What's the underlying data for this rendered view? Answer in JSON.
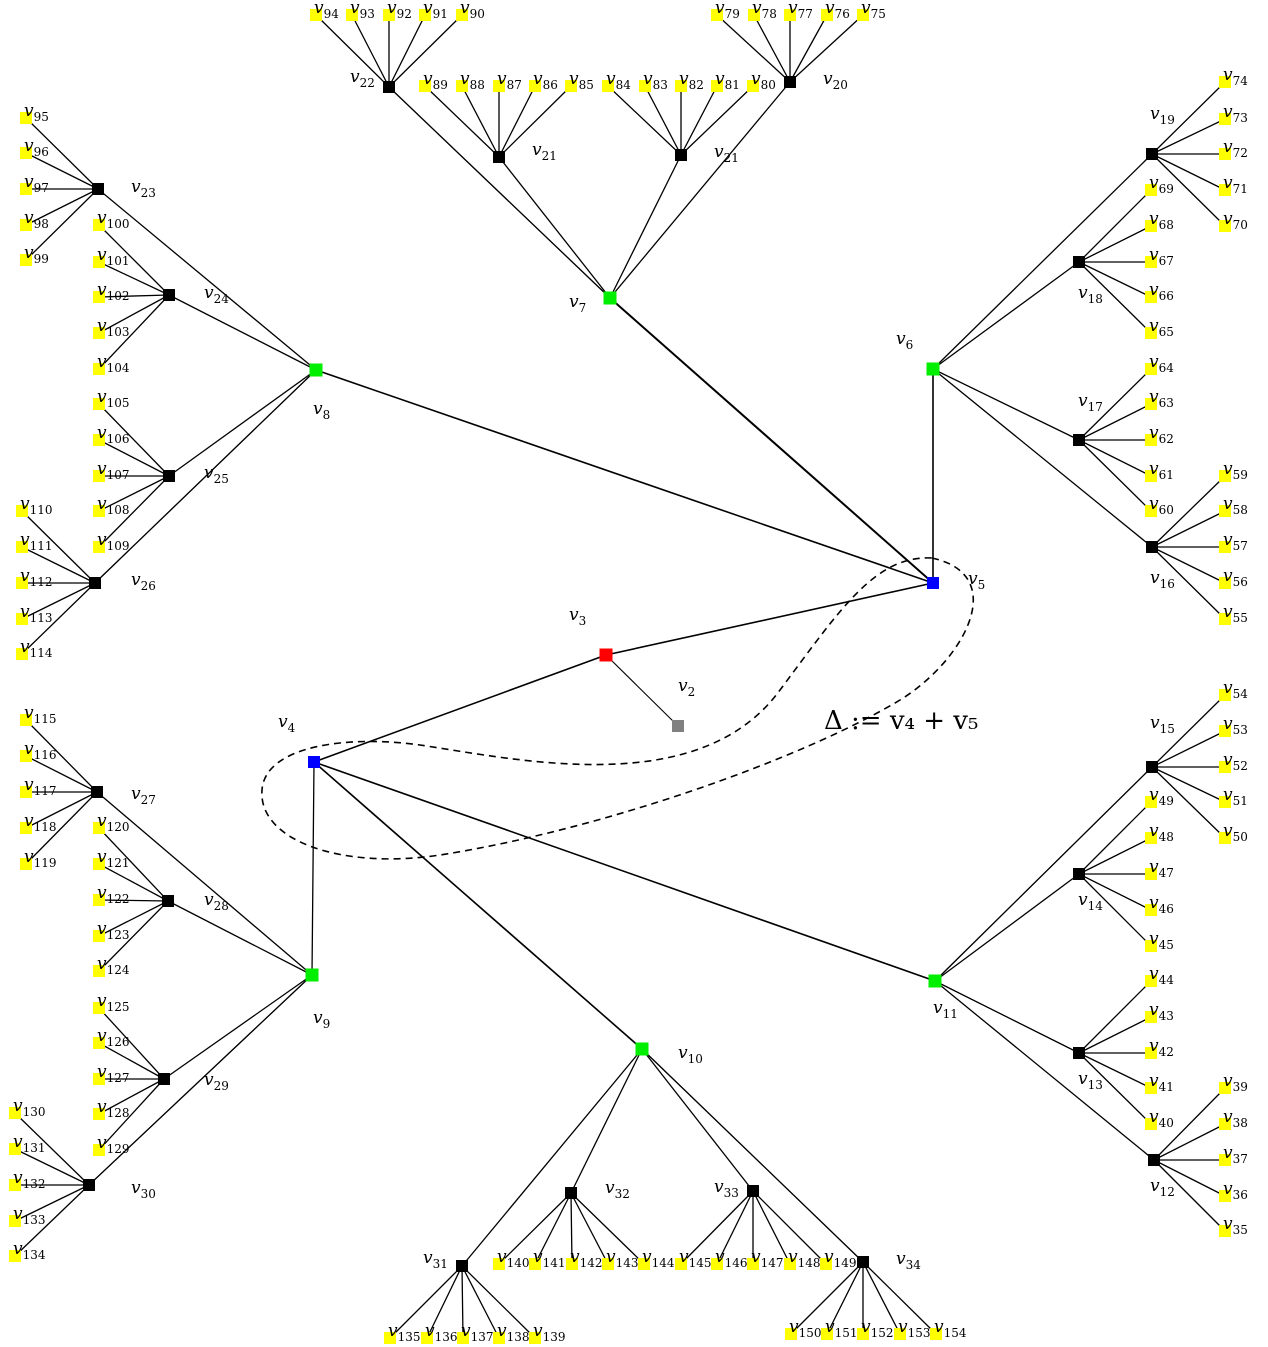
{
  "colors": {
    "root": "#ff0000",
    "center": "#0000ff",
    "hub": "#00ee00",
    "group": "#000000",
    "leaf": "#ffff00",
    "pendant": "#808080"
  },
  "annotation": {
    "text": "Δ := v₄ + v₅"
  },
  "labels": {
    "2": "v2",
    "3": "v3",
    "4": "v4",
    "5": "v5",
    "6": "v6",
    "7": "v7",
    "8": "v8",
    "9": "v9",
    "10": "v10",
    "11": "v11",
    "12": "v12",
    "13": "v13",
    "14": "v14",
    "15": "v15",
    "16": "v16",
    "17": "v17",
    "18": "v18",
    "19": "v19",
    "20": "v20",
    "21a": "v21",
    "21b": "v21",
    "22": "v22",
    "23": "v23",
    "24": "v24",
    "25": "v25",
    "26": "v26",
    "27": "v27",
    "28": "v28",
    "29": "v29",
    "30": "v30",
    "31": "v31",
    "32": "v32",
    "33": "v33",
    "34": "v34",
    "35": "v35",
    "36": "v36",
    "37": "v37",
    "38": "v38",
    "39": "v39",
    "40": "v40",
    "41": "v41",
    "42": "v42",
    "43": "v43",
    "44": "v44",
    "45": "v45",
    "46": "v46",
    "47": "v47",
    "48": "v48",
    "49": "v49",
    "50": "v50",
    "51": "v51",
    "52": "v52",
    "53": "v53",
    "54": "v54",
    "55": "v55",
    "56": "v56",
    "57": "v57",
    "58": "v58",
    "59": "v59",
    "60": "v60",
    "61": "v61",
    "62": "v62",
    "63": "v63",
    "64": "v64",
    "65": "v65",
    "66": "v66",
    "67": "v67",
    "68": "v68",
    "69": "v69",
    "70": "v70",
    "71": "v71",
    "72": "v72",
    "73": "v73",
    "74": "v74",
    "75": "v75",
    "76": "v76",
    "77": "v77",
    "78": "v78",
    "79": "v79",
    "80": "v80",
    "81": "v81",
    "82": "v82",
    "83": "v83",
    "84": "v84",
    "85": "v85",
    "86": "v86",
    "87": "v87",
    "88": "v88",
    "89": "v89",
    "90": "v90",
    "91": "v91",
    "92": "v92",
    "93": "v93",
    "94": "v94",
    "95": "v95",
    "96": "v96",
    "97": "v97",
    "98": "v98",
    "99": "v99",
    "100": "v100",
    "101": "v101",
    "102": "v102",
    "103": "v103",
    "104": "v104",
    "105": "v105",
    "106": "v106",
    "107": "v107",
    "108": "v108",
    "109": "v109",
    "110": "v110",
    "111": "v111",
    "112": "v112",
    "113": "v113",
    "114": "v114",
    "115": "v115",
    "116": "v116",
    "117": "v117",
    "118": "v118",
    "119": "v119",
    "120": "v120",
    "121": "v121",
    "122": "v122",
    "123": "v123",
    "124": "v124",
    "125": "v125",
    "126": "v126",
    "127": "v127",
    "128": "v128",
    "129": "v129",
    "130": "v130",
    "131": "v131",
    "132": "v132",
    "133": "v133",
    "134": "v134",
    "135": "v135",
    "136": "v136",
    "137": "v137",
    "138": "v138",
    "139": "v139",
    "140": "v140",
    "141": "v141",
    "142": "v142",
    "143": "v143",
    "144": "v144",
    "145": "v145",
    "146": "v146",
    "147": "v147",
    "148": "v148",
    "149": "v149",
    "150": "v150",
    "151": "v151",
    "152": "v152",
    "153": "v153",
    "154": "v154"
  }
}
